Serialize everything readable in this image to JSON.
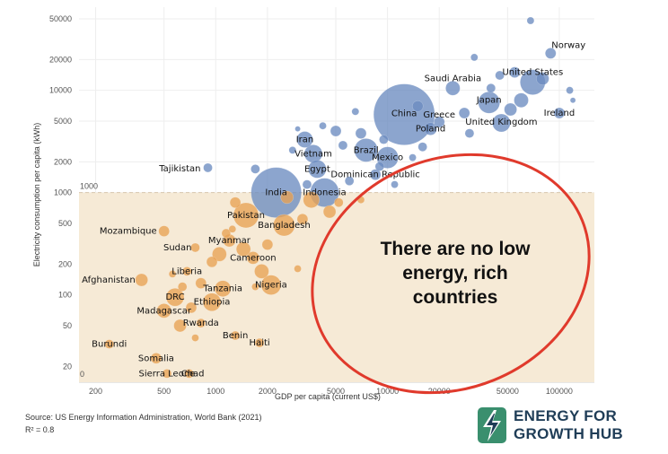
{
  "chart_data": {
    "type": "scatter",
    "title": "",
    "xlabel": "GDP per capita (current US$)",
    "ylabel": "Electricity consumption per capita (kWh)",
    "x_scale": "log",
    "y_scale": "log",
    "xlim": [
      160,
      160000
    ],
    "ylim": [
      14,
      65000
    ],
    "x_ticks": [
      200,
      500,
      1000,
      2000,
      5000,
      10000,
      20000,
      50000,
      100000
    ],
    "y_ticks": [
      20,
      50,
      100,
      200,
      500,
      1000,
      2000,
      5000,
      10000,
      20000,
      50000
    ],
    "threshold": {
      "value": 1000,
      "label": "1000",
      "zero_label": "0"
    },
    "annotation": [
      "There are no low",
      "energy, rich",
      "countries"
    ],
    "colors": {
      "high": "#6b8cc0",
      "low": "#e8a153",
      "band": "#f6ead6",
      "ellipse": "#e03a2c"
    },
    "labeled_points": [
      {
        "name": "Norway",
        "gdp": 89000,
        "kwh": 23000,
        "size": 6
      },
      {
        "name": "United States",
        "gdp": 70000,
        "kwh": 12000,
        "size": 14
      },
      {
        "name": "Ireland",
        "gdp": 100000,
        "kwh": 6000,
        "size": 6
      },
      {
        "name": "Saudi Arabia",
        "gdp": 24000,
        "kwh": 10500,
        "size": 8
      },
      {
        "name": "Japan",
        "gdp": 39000,
        "kwh": 7600,
        "size": 12
      },
      {
        "name": "United Kingdom",
        "gdp": 46000,
        "kwh": 4800,
        "size": 10
      },
      {
        "name": "China",
        "gdp": 12500,
        "kwh": 5800,
        "size": 34
      },
      {
        "name": "Greece",
        "gdp": 20000,
        "kwh": 4900,
        "size": 6
      },
      {
        "name": "Poland",
        "gdp": 17800,
        "kwh": 4200,
        "size": 7
      },
      {
        "name": "Iran",
        "gdp": 3300,
        "kwh": 3300,
        "size": 9
      },
      {
        "name": "Brazil",
        "gdp": 7500,
        "kwh": 2600,
        "size": 13
      },
      {
        "name": "Vietnam",
        "gdp": 3700,
        "kwh": 2400,
        "size": 10
      },
      {
        "name": "Mexico",
        "gdp": 10000,
        "kwh": 2200,
        "size": 12
      },
      {
        "name": "Egypt",
        "gdp": 3900,
        "kwh": 1700,
        "size": 10
      },
      {
        "name": "Dominican Republic",
        "gdp": 8500,
        "kwh": 1500,
        "size": 6
      },
      {
        "name": "Tajikistan",
        "gdp": 900,
        "kwh": 1750,
        "size": 5
      },
      {
        "name": "India",
        "gdp": 2250,
        "kwh": 1000,
        "size": 28
      },
      {
        "name": "Indonesia",
        "gdp": 4300,
        "kwh": 1000,
        "size": 16
      },
      {
        "name": "Pakistan",
        "gdp": 1500,
        "kwh": 600,
        "size": 14
      },
      {
        "name": "Bangladesh",
        "gdp": 2500,
        "kwh": 480,
        "size": 12
      },
      {
        "name": "Mozambique",
        "gdp": 500,
        "kwh": 420,
        "size": 6
      },
      {
        "name": "Myanmar",
        "gdp": 1200,
        "kwh": 340,
        "size": 7
      },
      {
        "name": "Sudan",
        "gdp": 760,
        "kwh": 290,
        "size": 5
      },
      {
        "name": "Cameroon",
        "gdp": 1650,
        "kwh": 230,
        "size": 7
      },
      {
        "name": "Liberia",
        "gdp": 680,
        "kwh": 170,
        "size": 5
      },
      {
        "name": "Afghanistan",
        "gdp": 370,
        "kwh": 140,
        "size": 7
      },
      {
        "name": "Nigeria",
        "gdp": 2100,
        "kwh": 125,
        "size": 11
      },
      {
        "name": "Tanzania",
        "gdp": 1100,
        "kwh": 115,
        "size": 9
      },
      {
        "name": "DRC",
        "gdp": 580,
        "kwh": 95,
        "size": 10
      },
      {
        "name": "Ethiopia",
        "gdp": 950,
        "kwh": 85,
        "size": 10
      },
      {
        "name": "Madagascar",
        "gdp": 500,
        "kwh": 70,
        "size": 8
      },
      {
        "name": "Rwanda",
        "gdp": 820,
        "kwh": 53,
        "size": 5
      },
      {
        "name": "Benin",
        "gdp": 1300,
        "kwh": 40,
        "size": 5
      },
      {
        "name": "Haiti",
        "gdp": 1800,
        "kwh": 34,
        "size": 5
      },
      {
        "name": "Burundi",
        "gdp": 240,
        "kwh": 33,
        "size": 5
      },
      {
        "name": "Somalia",
        "gdp": 450,
        "kwh": 24,
        "size": 6
      },
      {
        "name": "Sierra Leone",
        "gdp": 520,
        "kwh": 17,
        "size": 5
      },
      {
        "name": "Chad",
        "gdp": 700,
        "kwh": 17,
        "size": 5
      }
    ],
    "other_points": [
      {
        "gdp": 68000,
        "kwh": 48000,
        "size": 4
      },
      {
        "gdp": 32000,
        "kwh": 21000,
        "size": 4
      },
      {
        "gdp": 55000,
        "kwh": 15000,
        "size": 6
      },
      {
        "gdp": 80000,
        "kwh": 13000,
        "size": 7
      },
      {
        "gdp": 45000,
        "kwh": 14000,
        "size": 5
      },
      {
        "gdp": 60000,
        "kwh": 8000,
        "size": 8
      },
      {
        "gdp": 52000,
        "kwh": 6500,
        "size": 7
      },
      {
        "gdp": 28000,
        "kwh": 6000,
        "size": 6
      },
      {
        "gdp": 30000,
        "kwh": 3800,
        "size": 5
      },
      {
        "gdp": 15000,
        "kwh": 7000,
        "size": 6
      },
      {
        "gdp": 6500,
        "kwh": 6200,
        "size": 4
      },
      {
        "gdp": 5000,
        "kwh": 4000,
        "size": 6
      },
      {
        "gdp": 7000,
        "kwh": 3800,
        "size": 6
      },
      {
        "gdp": 9500,
        "kwh": 3300,
        "size": 5
      },
      {
        "gdp": 4200,
        "kwh": 4500,
        "size": 4
      },
      {
        "gdp": 3000,
        "kwh": 4200,
        "size": 3
      },
      {
        "gdp": 5500,
        "kwh": 2900,
        "size": 5
      },
      {
        "gdp": 14000,
        "kwh": 2200,
        "size": 4
      },
      {
        "gdp": 16000,
        "kwh": 2800,
        "size": 5
      },
      {
        "gdp": 2800,
        "kwh": 2600,
        "size": 4
      },
      {
        "gdp": 6000,
        "kwh": 1300,
        "size": 5
      },
      {
        "gdp": 11000,
        "kwh": 1200,
        "size": 4
      },
      {
        "gdp": 1700,
        "kwh": 1700,
        "size": 5
      },
      {
        "gdp": 3400,
        "kwh": 1200,
        "size": 5
      },
      {
        "gdp": 115000,
        "kwh": 10000,
        "size": 4
      },
      {
        "gdp": 120000,
        "kwh": 8000,
        "size": 3
      },
      {
        "gdp": 40000,
        "kwh": 10500,
        "size": 5
      },
      {
        "gdp": 9000,
        "kwh": 1800,
        "size": 5
      },
      {
        "gdp": 1300,
        "kwh": 800,
        "size": 6
      },
      {
        "gdp": 3600,
        "kwh": 850,
        "size": 9
      },
      {
        "gdp": 4600,
        "kwh": 650,
        "size": 7
      },
      {
        "gdp": 5200,
        "kwh": 800,
        "size": 5
      },
      {
        "gdp": 1150,
        "kwh": 400,
        "size": 5
      },
      {
        "gdp": 3200,
        "kwh": 550,
        "size": 6
      },
      {
        "gdp": 1450,
        "kwh": 280,
        "size": 8
      },
      {
        "gdp": 2000,
        "kwh": 310,
        "size": 6
      },
      {
        "gdp": 950,
        "kwh": 210,
        "size": 6
      },
      {
        "gdp": 1850,
        "kwh": 170,
        "size": 8
      },
      {
        "gdp": 3000,
        "kwh": 180,
        "size": 4
      },
      {
        "gdp": 640,
        "kwh": 120,
        "size": 5
      },
      {
        "gdp": 1700,
        "kwh": 120,
        "size": 4
      },
      {
        "gdp": 820,
        "kwh": 130,
        "size": 6
      },
      {
        "gdp": 560,
        "kwh": 160,
        "size": 4
      },
      {
        "gdp": 720,
        "kwh": 75,
        "size": 6
      },
      {
        "gdp": 620,
        "kwh": 50,
        "size": 7
      },
      {
        "gdp": 760,
        "kwh": 38,
        "size": 4
      },
      {
        "gdp": 1050,
        "kwh": 250,
        "size": 8
      },
      {
        "gdp": 7000,
        "kwh": 850,
        "size": 4
      },
      {
        "gdp": 2600,
        "kwh": 900,
        "size": 7
      },
      {
        "gdp": 1250,
        "kwh": 440,
        "size": 4
      }
    ]
  },
  "footer": {
    "source": "Source: US Energy Information Administration, World Bank (2021)",
    "r2": "R² = 0.8"
  },
  "logo": {
    "line1": "ENERGY FOR",
    "line2": "GROWTH HUB"
  }
}
